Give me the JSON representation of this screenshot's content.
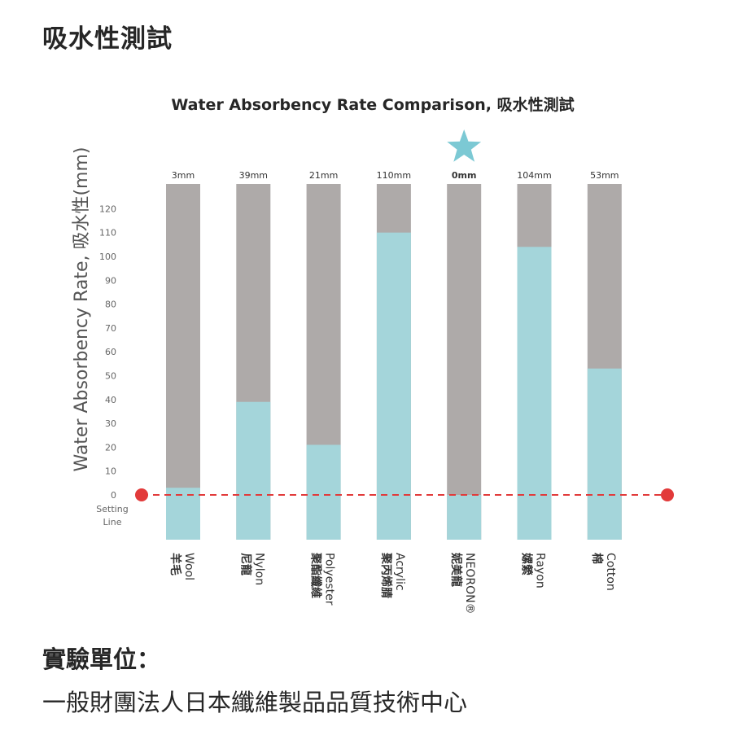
{
  "page": {
    "title": "吸水性測試",
    "unit_label": "實驗單位：",
    "unit_name": "一般財團法人日本纖維製品品質技術中心"
  },
  "chart_data": {
    "type": "bar",
    "title": "Water Absorbency Rate Comparison, 吸水性測試",
    "ylabel": "Water Absorbency Rate, 吸水性(mm)",
    "xlabel": "",
    "ylim": [
      0,
      120
    ],
    "y_ticks": [
      0,
      10,
      20,
      30,
      40,
      50,
      60,
      70,
      80,
      90,
      100,
      110,
      120
    ],
    "setting_line_label": [
      "Setting",
      "Line"
    ],
    "categories": [
      "Wool 羊毛",
      "Nylon 尼龍",
      "Polyester 聚酯纖維",
      "Acrylic 聚丙烯腈",
      "NEORON® 妮美龍",
      "Rayon 嫘縈",
      "Cotton 棉"
    ],
    "category_en": [
      "Wool",
      "Nylon",
      "Polyester",
      "Acrylic",
      "NEORON®",
      "Rayon",
      "Cotton"
    ],
    "category_zh": [
      "羊毛",
      "尼龍",
      "聚酯纖維",
      "聚丙烯腈",
      "妮美龍",
      "嫘縈",
      "棉"
    ],
    "values": [
      3,
      39,
      21,
      110,
      0,
      104,
      53
    ],
    "value_labels": [
      "3mm",
      "39mm",
      "21mm",
      "110mm",
      "0mm",
      "104mm",
      "53mm"
    ],
    "highlight_index": 4,
    "colors": {
      "absorbed": "#a4d5da",
      "remaining": "#aeaaa9",
      "setting_line": "#e23a3a",
      "star": "#7cc9d4",
      "text": "#262626"
    },
    "grid": false,
    "legend": "none"
  }
}
